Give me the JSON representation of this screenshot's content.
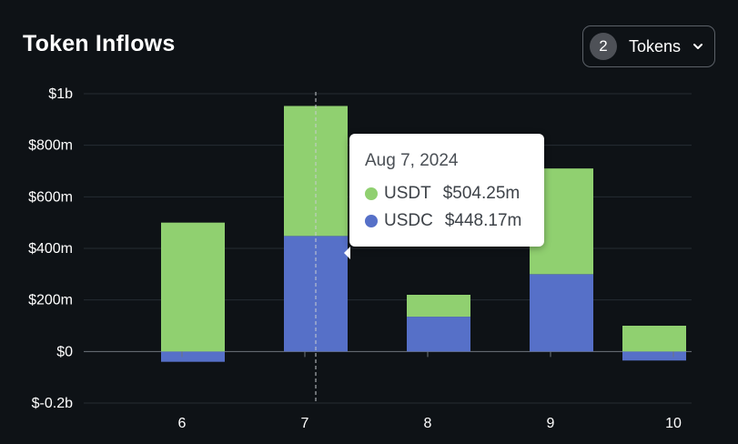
{
  "header": {
    "title": "Token Inflows",
    "token_count": "2",
    "token_label": "Tokens"
  },
  "tooltip": {
    "date": "Aug 7, 2024",
    "rows": [
      {
        "name": "USDT",
        "value": "$504.25m",
        "color": "#90d070"
      },
      {
        "name": "USDC",
        "value": "$448.17m",
        "color": "#5670c8"
      }
    ]
  },
  "chart_data": {
    "type": "bar",
    "stacked": true,
    "categories": [
      "6",
      "7",
      "8",
      "9",
      "10"
    ],
    "series": [
      {
        "name": "USDC",
        "color": "#5670c8",
        "values": [
          -40,
          448.17,
          135,
          300,
          -35
        ]
      },
      {
        "name": "USDT",
        "color": "#90d070",
        "values": [
          500,
          504.25,
          85,
          410,
          100
        ]
      }
    ],
    "ylim": [
      -200,
      1000
    ],
    "yticks": [
      {
        "value": 1000,
        "label": "$1b"
      },
      {
        "value": 800,
        "label": "$800m"
      },
      {
        "value": 600,
        "label": "$600m"
      },
      {
        "value": 400,
        "label": "$400m"
      },
      {
        "value": 200,
        "label": "$200m"
      },
      {
        "value": 0,
        "label": "$0"
      },
      {
        "value": -200,
        "label": "$-0.2b"
      }
    ],
    "yunit": "millions USD",
    "grid": true,
    "highlight_category": "7"
  }
}
